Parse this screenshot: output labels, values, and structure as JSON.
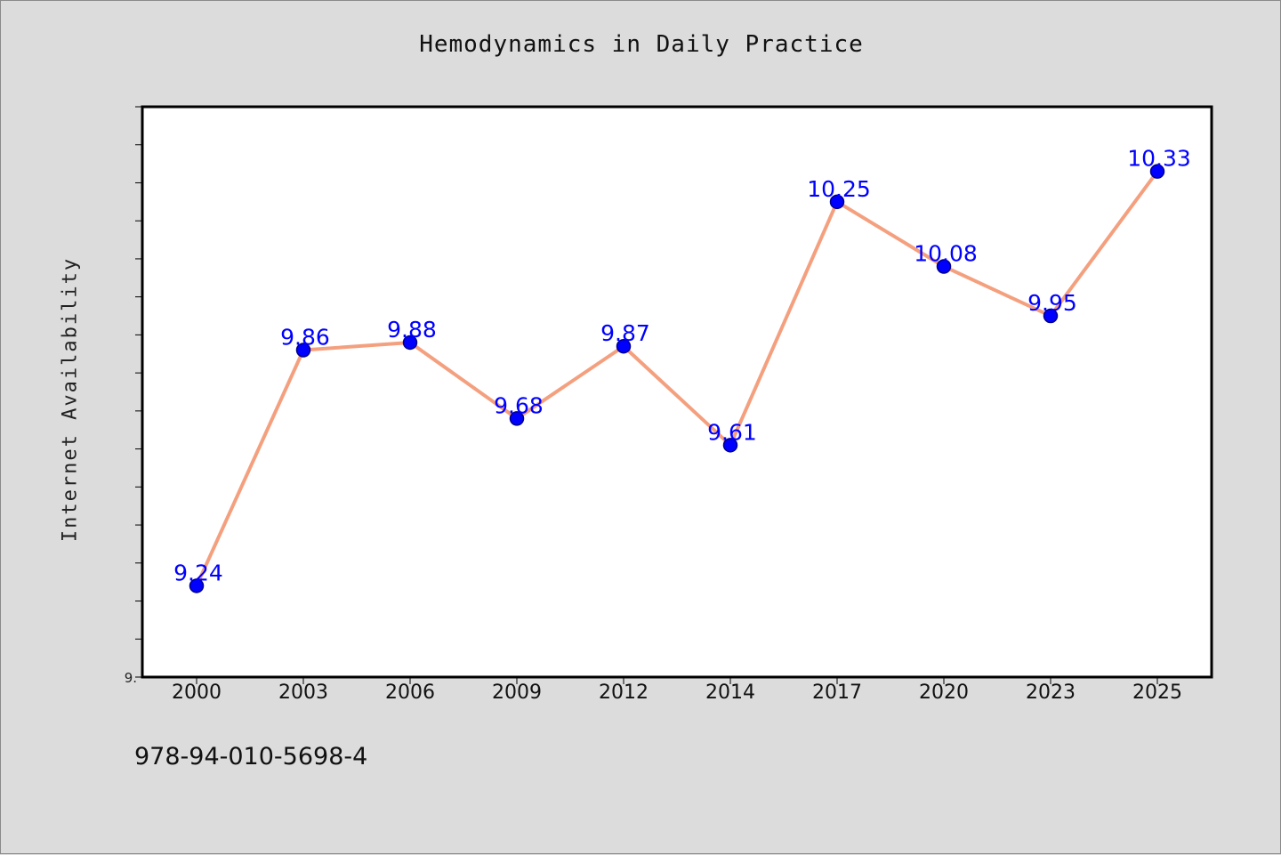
{
  "title": "Hemodynamics in Daily Practice",
  "footer": {
    "code": "978-94-010-5698-4"
  },
  "chart_data": {
    "type": "line",
    "title": "Hemodynamics in Daily Practice",
    "xlabel": "",
    "ylabel": "Internet Availability",
    "categories": [
      "2000",
      "2003",
      "2006",
      "2009",
      "2012",
      "2014",
      "2017",
      "2020",
      "2023",
      "2025"
    ],
    "series": [
      {
        "values": [
          9.24,
          9.86,
          9.88,
          9.68,
          9.87,
          9.61,
          10.25,
          10.08,
          9.95,
          10.33
        ],
        "data_labels": [
          "9.24",
          "9.86",
          "9.88",
          "9.68",
          "9.87",
          "9.61",
          "10.25",
          "10.08",
          "9.95",
          "10.33"
        ]
      }
    ],
    "ylim": [
      9.0,
      10.5
    ],
    "y_tick_label": "9.",
    "grid": false,
    "legend": "none",
    "colors": {
      "line": "#f4a07f",
      "marker": "#0000ff",
      "marker_edge": "#00008b",
      "data_label": "#0000ff",
      "plot_background": "#ffffff",
      "figure_background": "#dcdcdc"
    }
  }
}
